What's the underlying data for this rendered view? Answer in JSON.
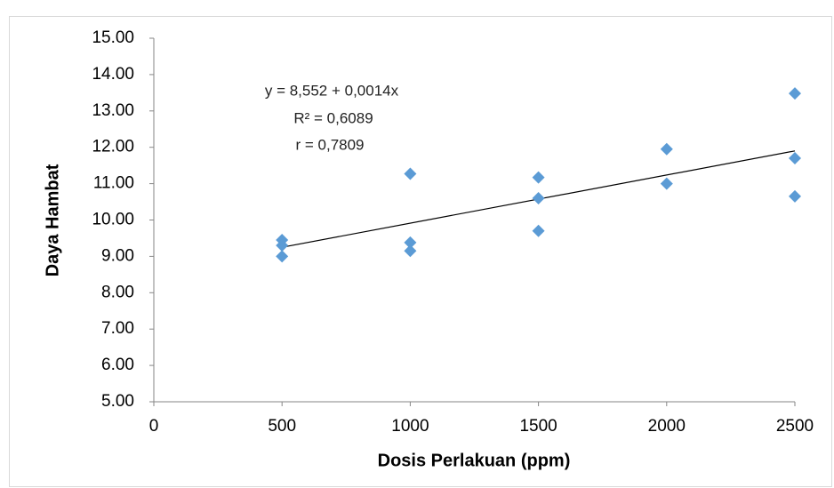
{
  "chart_data": {
    "type": "scatter",
    "x_label": "Dosis Perlakuan (ppm)",
    "y_label": "Daya Hambat",
    "x": [
      500,
      500,
      500,
      1000,
      1000,
      1000,
      1500,
      1500,
      1500,
      2000,
      2000,
      2500,
      2500,
      2500
    ],
    "values": [
      9.45,
      9.3,
      9.0,
      11.27,
      9.38,
      9.15,
      11.17,
      10.6,
      9.7,
      11.95,
      11.0,
      13.48,
      11.7,
      10.65
    ],
    "color": "#5b9bd5",
    "trendline": {
      "x": [
        500,
        2500
      ],
      "values": [
        9.25,
        11.9
      ],
      "color": "#000000"
    },
    "annotations": [
      "y = 8,552 + 0,0014x",
      "R² = 0,6089",
      "r = 0,7809"
    ],
    "xlim": [
      0,
      2500
    ],
    "xticks": [
      0,
      500,
      1000,
      1500,
      2000,
      2500
    ],
    "ylim": [
      5,
      15
    ],
    "yticks": [
      {
        "value": 5,
        "label": "5.00"
      },
      {
        "value": 6,
        "label": "6.00"
      },
      {
        "value": 7,
        "label": "7.00"
      },
      {
        "value": 8,
        "label": "8.00"
      },
      {
        "value": 9,
        "label": "9.00"
      },
      {
        "value": 10,
        "label": "10.00"
      },
      {
        "value": 11,
        "label": "11.00"
      },
      {
        "value": 12,
        "label": "12.00"
      },
      {
        "value": 13,
        "label": "13.00"
      },
      {
        "value": 14,
        "label": "14.00"
      },
      {
        "value": 15,
        "label": "15.00"
      }
    ],
    "grid": false
  }
}
